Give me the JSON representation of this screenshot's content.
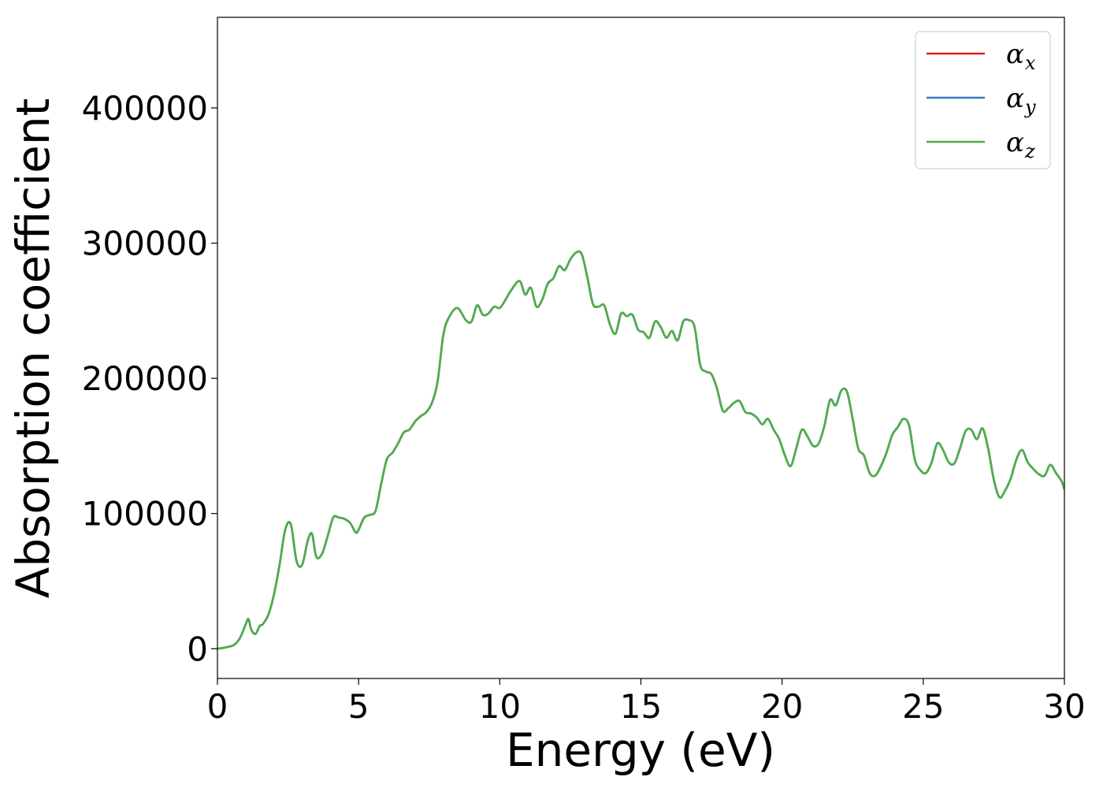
{
  "chart_data": {
    "type": "line",
    "title": "",
    "xlabel": "Energy (eV)",
    "ylabel": "Absorption coefficient",
    "xlim": [
      0,
      30
    ],
    "ylim": [
      -22000,
      467000
    ],
    "x_ticks": [
      0,
      5,
      10,
      15,
      20,
      25,
      30
    ],
    "x_tick_labels": [
      "0",
      "5",
      "10",
      "15",
      "20",
      "25",
      "30"
    ],
    "y_ticks": [
      0,
      100000,
      200000,
      300000,
      400000
    ],
    "y_tick_labels": [
      "0",
      "100000",
      "200000",
      "300000",
      "400000"
    ],
    "grid": false,
    "legend_placement": "top-right",
    "series": [
      {
        "name": "α_x",
        "base": "α",
        "sub": "x",
        "color": "#e41a1c",
        "x": [
          0,
          0.3,
          0.6,
          0.8,
          1.0,
          1.1,
          1.2,
          1.35,
          1.5,
          1.6,
          1.8,
          2.0,
          2.2,
          2.4,
          2.6,
          2.8,
          3.0,
          3.2,
          3.35,
          3.5,
          3.7,
          3.9,
          4.1,
          4.3,
          4.5,
          4.7,
          4.9,
          5.0,
          5.2,
          5.4,
          5.6,
          5.8,
          6.0,
          6.2,
          6.4,
          6.6,
          6.8,
          7.0,
          7.2,
          7.4,
          7.6,
          7.8,
          8.0,
          8.2,
          8.5,
          8.8,
          9.0,
          9.2,
          9.4,
          9.6,
          9.8,
          10.0,
          10.2,
          10.4,
          10.7,
          10.9,
          11.1,
          11.3,
          11.5,
          11.7,
          11.9,
          12.1,
          12.3,
          12.5,
          12.7,
          12.9,
          13.1,
          13.3,
          13.5,
          13.7,
          13.9,
          14.1,
          14.3,
          14.5,
          14.7,
          14.9,
          15.1,
          15.3,
          15.5,
          15.7,
          15.9,
          16.1,
          16.3,
          16.5,
          16.7,
          16.9,
          17.1,
          17.3,
          17.5,
          17.7,
          17.9,
          18.1,
          18.3,
          18.5,
          18.7,
          18.9,
          19.1,
          19.3,
          19.5,
          19.7,
          19.9,
          20.1,
          20.3,
          20.5,
          20.7,
          20.9,
          21.1,
          21.3,
          21.5,
          21.7,
          21.9,
          22.1,
          22.3,
          22.5,
          22.7,
          22.9,
          23.1,
          23.3,
          23.5,
          23.7,
          23.9,
          24.1,
          24.3,
          24.5,
          24.7,
          24.9,
          25.1,
          25.3,
          25.5,
          25.7,
          25.9,
          26.1,
          26.3,
          26.5,
          26.7,
          26.9,
          27.1,
          27.3,
          27.5,
          27.7,
          27.9,
          28.1,
          28.3,
          28.5,
          28.7,
          28.9,
          29.1,
          29.3,
          29.5,
          29.7,
          29.9,
          30.0
        ],
        "y": [
          0,
          1000,
          3000,
          8000,
          18000,
          22000,
          14000,
          11000,
          17000,
          18000,
          25000,
          40000,
          62000,
          88000,
          92000,
          65000,
          62000,
          80000,
          85000,
          68000,
          70000,
          83000,
          97000,
          97000,
          96000,
          93000,
          86000,
          88000,
          97000,
          99000,
          102000,
          122000,
          140000,
          145000,
          152000,
          160000,
          162000,
          168000,
          172000,
          175000,
          182000,
          198000,
          232000,
          245000,
          252000,
          243000,
          242000,
          254000,
          247000,
          248000,
          253000,
          252000,
          258000,
          265000,
          272000,
          262000,
          267000,
          253000,
          258000,
          270000,
          274000,
          283000,
          280000,
          288000,
          293000,
          292000,
          275000,
          255000,
          253000,
          254000,
          240000,
          233000,
          248000,
          246000,
          247000,
          236000,
          234000,
          230000,
          242000,
          238000,
          230000,
          235000,
          228000,
          242000,
          243000,
          238000,
          210000,
          205000,
          203000,
          192000,
          176000,
          178000,
          182000,
          183000,
          175000,
          174000,
          171000,
          166000,
          170000,
          162000,
          155000,
          143000,
          135000,
          148000,
          162000,
          157000,
          150000,
          152000,
          165000,
          184000,
          180000,
          191000,
          190000,
          170000,
          148000,
          143000,
          130000,
          128000,
          135000,
          145000,
          158000,
          164000,
          170000,
          165000,
          140000,
          132000,
          130000,
          138000,
          152000,
          147000,
          138000,
          137000,
          148000,
          161000,
          162000,
          155000,
          163000,
          148000,
          125000,
          112000,
          117000,
          126000,
          140000,
          147000,
          138000,
          133000,
          129000,
          128000,
          136000,
          130000,
          124000,
          118000
        ]
      },
      {
        "name": "α_y",
        "base": "α",
        "sub": "y",
        "color": "#377eb8",
        "x": [
          0,
          0.3,
          0.6,
          0.8,
          1.0,
          1.1,
          1.2,
          1.35,
          1.5,
          1.6,
          1.8,
          2.0,
          2.2,
          2.4,
          2.6,
          2.8,
          3.0,
          3.2,
          3.35,
          3.5,
          3.7,
          3.9,
          4.1,
          4.3,
          4.5,
          4.7,
          4.9,
          5.0,
          5.2,
          5.4,
          5.6,
          5.8,
          6.0,
          6.2,
          6.4,
          6.6,
          6.8,
          7.0,
          7.2,
          7.4,
          7.6,
          7.8,
          8.0,
          8.2,
          8.5,
          8.8,
          9.0,
          9.2,
          9.4,
          9.6,
          9.8,
          10.0,
          10.2,
          10.4,
          10.7,
          10.9,
          11.1,
          11.3,
          11.5,
          11.7,
          11.9,
          12.1,
          12.3,
          12.5,
          12.7,
          12.9,
          13.1,
          13.3,
          13.5,
          13.7,
          13.9,
          14.1,
          14.3,
          14.5,
          14.7,
          14.9,
          15.1,
          15.3,
          15.5,
          15.7,
          15.9,
          16.1,
          16.3,
          16.5,
          16.7,
          16.9,
          17.1,
          17.3,
          17.5,
          17.7,
          17.9,
          18.1,
          18.3,
          18.5,
          18.7,
          18.9,
          19.1,
          19.3,
          19.5,
          19.7,
          19.9,
          20.1,
          20.3,
          20.5,
          20.7,
          20.9,
          21.1,
          21.3,
          21.5,
          21.7,
          21.9,
          22.1,
          22.3,
          22.5,
          22.7,
          22.9,
          23.1,
          23.3,
          23.5,
          23.7,
          23.9,
          24.1,
          24.3,
          24.5,
          24.7,
          24.9,
          25.1,
          25.3,
          25.5,
          25.7,
          25.9,
          26.1,
          26.3,
          26.5,
          26.7,
          26.9,
          27.1,
          27.3,
          27.5,
          27.7,
          27.9,
          28.1,
          28.3,
          28.5,
          28.7,
          28.9,
          29.1,
          29.3,
          29.5,
          29.7,
          29.9,
          30.0
        ],
        "y": [
          0,
          1000,
          3000,
          8000,
          18000,
          22000,
          14000,
          11000,
          17000,
          18000,
          25000,
          40000,
          62000,
          88000,
          92000,
          65000,
          62000,
          80000,
          85000,
          68000,
          70000,
          83000,
          97000,
          97000,
          96000,
          93000,
          86000,
          88000,
          97000,
          99000,
          102000,
          122000,
          140000,
          145000,
          152000,
          160000,
          162000,
          168000,
          172000,
          175000,
          182000,
          198000,
          232000,
          245000,
          252000,
          243000,
          242000,
          254000,
          247000,
          248000,
          253000,
          252000,
          258000,
          265000,
          272000,
          262000,
          267000,
          253000,
          258000,
          270000,
          274000,
          283000,
          280000,
          288000,
          293000,
          292000,
          275000,
          255000,
          253000,
          254000,
          240000,
          233000,
          248000,
          246000,
          247000,
          236000,
          234000,
          230000,
          242000,
          238000,
          230000,
          235000,
          228000,
          242000,
          243000,
          238000,
          210000,
          205000,
          203000,
          192000,
          176000,
          178000,
          182000,
          183000,
          175000,
          174000,
          171000,
          166000,
          170000,
          162000,
          155000,
          143000,
          135000,
          148000,
          162000,
          157000,
          150000,
          152000,
          165000,
          184000,
          180000,
          191000,
          190000,
          170000,
          148000,
          143000,
          130000,
          128000,
          135000,
          145000,
          158000,
          164000,
          170000,
          165000,
          140000,
          132000,
          130000,
          138000,
          152000,
          147000,
          138000,
          137000,
          148000,
          161000,
          162000,
          155000,
          163000,
          148000,
          125000,
          112000,
          117000,
          126000,
          140000,
          147000,
          138000,
          133000,
          129000,
          128000,
          136000,
          130000,
          124000,
          118000
        ]
      },
      {
        "name": "α_z",
        "base": "α",
        "sub": "z",
        "color": "#4daf4a",
        "x": [
          0,
          0.3,
          0.6,
          0.8,
          1.0,
          1.1,
          1.2,
          1.35,
          1.5,
          1.6,
          1.8,
          2.0,
          2.2,
          2.4,
          2.6,
          2.8,
          3.0,
          3.2,
          3.35,
          3.5,
          3.7,
          3.9,
          4.1,
          4.3,
          4.5,
          4.7,
          4.9,
          5.0,
          5.2,
          5.4,
          5.6,
          5.8,
          6.0,
          6.2,
          6.4,
          6.6,
          6.8,
          7.0,
          7.2,
          7.4,
          7.6,
          7.8,
          8.0,
          8.2,
          8.5,
          8.8,
          9.0,
          9.2,
          9.4,
          9.6,
          9.8,
          10.0,
          10.2,
          10.4,
          10.7,
          10.9,
          11.1,
          11.3,
          11.5,
          11.7,
          11.9,
          12.1,
          12.3,
          12.5,
          12.7,
          12.9,
          13.1,
          13.3,
          13.5,
          13.7,
          13.9,
          14.1,
          14.3,
          14.5,
          14.7,
          14.9,
          15.1,
          15.3,
          15.5,
          15.7,
          15.9,
          16.1,
          16.3,
          16.5,
          16.7,
          16.9,
          17.1,
          17.3,
          17.5,
          17.7,
          17.9,
          18.1,
          18.3,
          18.5,
          18.7,
          18.9,
          19.1,
          19.3,
          19.5,
          19.7,
          19.9,
          20.1,
          20.3,
          20.5,
          20.7,
          20.9,
          21.1,
          21.3,
          21.5,
          21.7,
          21.9,
          22.1,
          22.3,
          22.5,
          22.7,
          22.9,
          23.1,
          23.3,
          23.5,
          23.7,
          23.9,
          24.1,
          24.3,
          24.5,
          24.7,
          24.9,
          25.1,
          25.3,
          25.5,
          25.7,
          25.9,
          26.1,
          26.3,
          26.5,
          26.7,
          26.9,
          27.1,
          27.3,
          27.5,
          27.7,
          27.9,
          28.1,
          28.3,
          28.5,
          28.7,
          28.9,
          29.1,
          29.3,
          29.5,
          29.7,
          29.9,
          30.0
        ],
        "y": [
          0,
          1000,
          3000,
          8000,
          18000,
          22000,
          14000,
          11000,
          17000,
          18000,
          25000,
          40000,
          62000,
          88000,
          92000,
          65000,
          62000,
          80000,
          85000,
          68000,
          70000,
          83000,
          97000,
          97000,
          96000,
          93000,
          86000,
          88000,
          97000,
          99000,
          102000,
          122000,
          140000,
          145000,
          152000,
          160000,
          162000,
          168000,
          172000,
          175000,
          182000,
          198000,
          232000,
          245000,
          252000,
          243000,
          242000,
          254000,
          247000,
          248000,
          253000,
          252000,
          258000,
          265000,
          272000,
          262000,
          267000,
          253000,
          258000,
          270000,
          274000,
          283000,
          280000,
          288000,
          293000,
          292000,
          275000,
          255000,
          253000,
          254000,
          240000,
          233000,
          248000,
          246000,
          247000,
          236000,
          234000,
          230000,
          242000,
          238000,
          230000,
          235000,
          228000,
          242000,
          243000,
          238000,
          210000,
          205000,
          203000,
          192000,
          176000,
          178000,
          182000,
          183000,
          175000,
          174000,
          171000,
          166000,
          170000,
          162000,
          155000,
          143000,
          135000,
          148000,
          162000,
          157000,
          150000,
          152000,
          165000,
          184000,
          180000,
          191000,
          190000,
          170000,
          148000,
          143000,
          130000,
          128000,
          135000,
          145000,
          158000,
          164000,
          170000,
          165000,
          140000,
          132000,
          130000,
          138000,
          152000,
          147000,
          138000,
          137000,
          148000,
          161000,
          162000,
          155000,
          163000,
          148000,
          125000,
          112000,
          117000,
          126000,
          140000,
          147000,
          138000,
          133000,
          129000,
          128000,
          136000,
          130000,
          124000,
          118000
        ]
      }
    ]
  }
}
